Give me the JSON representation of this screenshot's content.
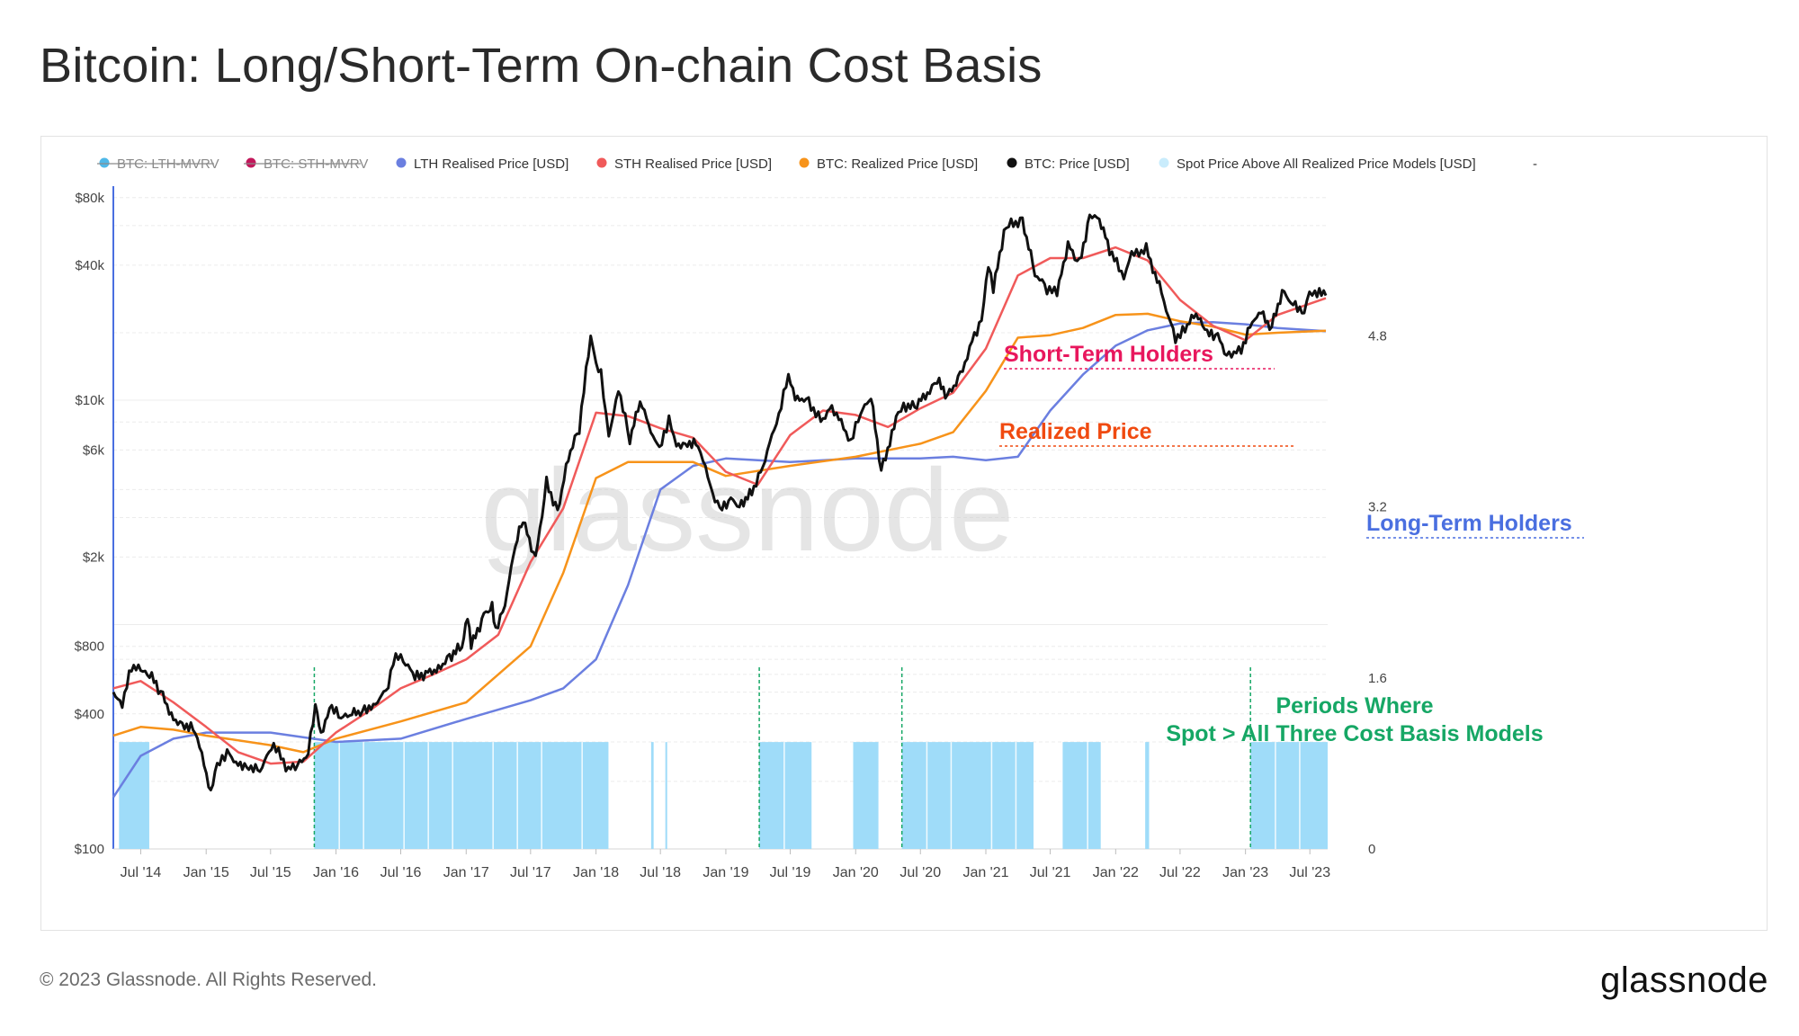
{
  "title": "Bitcoin: Long/Short-Term On-chain Cost Basis",
  "footer": {
    "copyright": "© 2023 Glassnode. All Rights Reserved.",
    "logo": "glassnode"
  },
  "watermark": "glassnode",
  "colors": {
    "lth": "#6b7fe0",
    "sth": "#f05a5a",
    "realized": "#f7931a",
    "price": "#111111",
    "spot": "#9fdcf9",
    "annot_sth": "#e8175d",
    "annot_realized": "#f04a10",
    "annot_lth": "#4a6fe0",
    "annot_periods": "#16a765"
  },
  "legend": [
    {
      "label": "BTC: LTH-MVRV",
      "color": "#4fb8e8",
      "disabled": true
    },
    {
      "label": "BTC: STH-MVRV",
      "color": "#c2185b",
      "disabled": true
    },
    {
      "label": "LTH Realised Price [USD]",
      "color": "#6b7fe0",
      "disabled": false
    },
    {
      "label": "STH Realised Price [USD]",
      "color": "#f05a5a",
      "disabled": false
    },
    {
      "label": "BTC: Realized Price [USD]",
      "color": "#f7931a",
      "disabled": false
    },
    {
      "label": "BTC: Price [USD]",
      "color": "#111111",
      "disabled": false
    },
    {
      "label": "Spot Price Above All Realized Price Models [USD]",
      "color": "#c9ecfc",
      "disabled": false
    },
    {
      "label": "-",
      "color": "none",
      "disabled": false
    }
  ],
  "annotations": {
    "sth": "Short-Term Holders",
    "realized": "Realized Price",
    "lth": "Long-Term Holders",
    "periods_line1": "Periods Where",
    "periods_line2": "Spot > All Three Cost Basis Models"
  },
  "chart_data": {
    "type": "line",
    "x_axis": {
      "type": "time",
      "range": [
        "2014-04-15",
        "2023-08-20"
      ],
      "tick_labels": [
        "Jul '14",
        "Jan '15",
        "Jul '15",
        "Jan '16",
        "Jul '16",
        "Jan '17",
        "Jul '17",
        "Jan '18",
        "Jul '18",
        "Jan '19",
        "Jul '19",
        "Jan '20",
        "Jul '20",
        "Jan '21",
        "Jul '21",
        "Jan '22",
        "Jul '22",
        "Jan '23",
        "Jul '23"
      ],
      "tick_dates": [
        "2014-07-01",
        "2015-01-01",
        "2015-07-01",
        "2016-01-01",
        "2016-07-01",
        "2017-01-01",
        "2017-07-01",
        "2018-01-01",
        "2018-07-01",
        "2019-01-01",
        "2019-07-01",
        "2020-01-01",
        "2020-07-01",
        "2021-01-01",
        "2021-07-01",
        "2022-01-01",
        "2022-07-01",
        "2023-01-01",
        "2023-07-01"
      ]
    },
    "y_axis_left": {
      "scale": "log",
      "range": [
        100,
        90000
      ],
      "tick_values": [
        100,
        400,
        800,
        2000,
        6000,
        10000,
        40000,
        80000
      ],
      "tick_labels": [
        "$100",
        "$400",
        "$800",
        "$2k",
        "$6k",
        "$10k",
        "$40k",
        "$80k"
      ]
    },
    "y_axis_right": {
      "scale": "linear",
      "range": [
        0,
        6.2
      ],
      "tick_values": [
        0,
        1.6,
        3.2,
        4.8
      ],
      "tick_labels": [
        "0",
        "1.6",
        "3.2",
        "4.8"
      ]
    },
    "grid": true,
    "legend_position": "top",
    "series": [
      {
        "name": "BTC: Price [USD]",
        "key": "price",
        "points": [
          [
            "2014-04-15",
            500
          ],
          [
            "2014-05-10",
            450
          ],
          [
            "2014-06-05",
            650
          ],
          [
            "2014-07-01",
            620
          ],
          [
            "2014-08-01",
            580
          ],
          [
            "2014-09-01",
            480
          ],
          [
            "2014-10-01",
            380
          ],
          [
            "2014-11-01",
            360
          ],
          [
            "2014-12-01",
            340
          ],
          [
            "2015-01-14",
            180
          ],
          [
            "2015-02-01",
            230
          ],
          [
            "2015-03-01",
            270
          ],
          [
            "2015-04-01",
            240
          ],
          [
            "2015-05-01",
            235
          ],
          [
            "2015-06-01",
            225
          ],
          [
            "2015-07-10",
            290
          ],
          [
            "2015-08-20",
            225
          ],
          [
            "2015-09-15",
            235
          ],
          [
            "2015-10-15",
            270
          ],
          [
            "2015-11-04",
            450
          ],
          [
            "2015-11-20",
            330
          ],
          [
            "2015-12-20",
            430
          ],
          [
            "2016-01-15",
            380
          ],
          [
            "2016-02-15",
            400
          ],
          [
            "2016-03-15",
            415
          ],
          [
            "2016-04-15",
            440
          ],
          [
            "2016-05-20",
            500
          ],
          [
            "2016-06-17",
            740
          ],
          [
            "2016-07-15",
            670
          ],
          [
            "2016-08-10",
            580
          ],
          [
            "2016-09-15",
            610
          ],
          [
            "2016-10-15",
            640
          ],
          [
            "2016-11-15",
            720
          ],
          [
            "2016-12-20",
            800
          ],
          [
            "2017-01-05",
            1100
          ],
          [
            "2017-01-15",
            800
          ],
          [
            "2017-02-20",
            1100
          ],
          [
            "2017-03-15",
            1200
          ],
          [
            "2017-03-25",
            950
          ],
          [
            "2017-04-20",
            1250
          ],
          [
            "2017-05-25",
            2500
          ],
          [
            "2017-06-10",
            2900
          ],
          [
            "2017-07-15",
            1950
          ],
          [
            "2017-08-15",
            4300
          ],
          [
            "2017-09-15",
            3200
          ],
          [
            "2017-10-15",
            5600
          ],
          [
            "2017-11-15",
            7500
          ],
          [
            "2017-12-17",
            19500
          ],
          [
            "2018-01-01",
            14000
          ],
          [
            "2018-01-15",
            13000
          ],
          [
            "2018-02-06",
            6900
          ],
          [
            "2018-03-05",
            11500
          ],
          [
            "2018-04-06",
            6700
          ],
          [
            "2018-05-05",
            9800
          ],
          [
            "2018-06-28",
            5900
          ],
          [
            "2018-07-25",
            8200
          ],
          [
            "2018-08-15",
            6300
          ],
          [
            "2018-09-15",
            6500
          ],
          [
            "2018-10-15",
            6400
          ],
          [
            "2018-11-25",
            3800
          ],
          [
            "2018-12-15",
            3200
          ],
          [
            "2019-01-15",
            3600
          ],
          [
            "2019-02-08",
            3400
          ],
          [
            "2019-03-15",
            3900
          ],
          [
            "2019-04-15",
            5100
          ],
          [
            "2019-05-30",
            8600
          ],
          [
            "2019-06-26",
            12800
          ],
          [
            "2019-07-15",
            10000
          ],
          [
            "2019-08-15",
            10300
          ],
          [
            "2019-09-25",
            8100
          ],
          [
            "2019-10-26",
            9400
          ],
          [
            "2019-12-18",
            6600
          ],
          [
            "2020-01-15",
            8700
          ],
          [
            "2020-02-13",
            10300
          ],
          [
            "2020-03-13",
            4900
          ],
          [
            "2020-04-30",
            8700
          ],
          [
            "2020-05-15",
            9500
          ],
          [
            "2020-06-15",
            9300
          ],
          [
            "2020-07-27",
            11000
          ],
          [
            "2020-08-17",
            12200
          ],
          [
            "2020-09-15",
            10500
          ],
          [
            "2020-10-21",
            12900
          ],
          [
            "2020-11-30",
            19500
          ],
          [
            "2020-12-20",
            23000
          ],
          [
            "2021-01-08",
            41000
          ],
          [
            "2021-01-22",
            31000
          ],
          [
            "2021-02-21",
            56000
          ],
          [
            "2021-03-13",
            61000
          ],
          [
            "2021-04-14",
            63500
          ],
          [
            "2021-05-19",
            37000
          ],
          [
            "2021-06-22",
            31500
          ],
          [
            "2021-07-20",
            29800
          ],
          [
            "2021-08-20",
            49000
          ],
          [
            "2021-09-21",
            40500
          ],
          [
            "2021-10-20",
            66000
          ],
          [
            "2021-11-10",
            68000
          ],
          [
            "2021-12-15",
            47000
          ],
          [
            "2022-01-24",
            35000
          ],
          [
            "2022-02-15",
            44000
          ],
          [
            "2022-03-28",
            47500
          ],
          [
            "2022-05-10",
            30000
          ],
          [
            "2022-06-18",
            18900
          ],
          [
            "2022-07-15",
            21000
          ],
          [
            "2022-08-15",
            24200
          ],
          [
            "2022-09-15",
            19700
          ],
          [
            "2022-10-15",
            19200
          ],
          [
            "2022-11-09",
            16000
          ],
          [
            "2022-12-20",
            16800
          ],
          [
            "2023-01-20",
            22800
          ],
          [
            "2023-02-20",
            24500
          ],
          [
            "2023-03-10",
            20000
          ],
          [
            "2023-04-14",
            30500
          ],
          [
            "2023-05-15",
            27000
          ],
          [
            "2023-06-15",
            25000
          ],
          [
            "2023-06-30",
            30500
          ],
          [
            "2023-07-15",
            30300
          ],
          [
            "2023-08-15",
            29300
          ]
        ]
      },
      {
        "name": "STH Realised Price [USD]",
        "key": "sth",
        "points": [
          [
            "2014-04-15",
            520
          ],
          [
            "2014-07-01",
            560
          ],
          [
            "2014-10-01",
            450
          ],
          [
            "2015-01-01",
            350
          ],
          [
            "2015-04-01",
            270
          ],
          [
            "2015-07-01",
            240
          ],
          [
            "2015-10-01",
            245
          ],
          [
            "2016-01-01",
            330
          ],
          [
            "2016-04-01",
            410
          ],
          [
            "2016-07-01",
            520
          ],
          [
            "2016-10-01",
            600
          ],
          [
            "2017-01-01",
            700
          ],
          [
            "2017-04-01",
            900
          ],
          [
            "2017-07-01",
            1900
          ],
          [
            "2017-10-01",
            3300
          ],
          [
            "2018-01-01",
            8800
          ],
          [
            "2018-04-01",
            8500
          ],
          [
            "2018-07-01",
            7500
          ],
          [
            "2018-10-01",
            6800
          ],
          [
            "2019-01-01",
            4800
          ],
          [
            "2019-04-01",
            4200
          ],
          [
            "2019-07-01",
            7000
          ],
          [
            "2019-10-01",
            9000
          ],
          [
            "2020-01-01",
            8600
          ],
          [
            "2020-04-01",
            7600
          ],
          [
            "2020-07-01",
            9200
          ],
          [
            "2020-10-01",
            10800
          ],
          [
            "2021-01-01",
            17000
          ],
          [
            "2021-04-01",
            36000
          ],
          [
            "2021-07-01",
            43000
          ],
          [
            "2021-10-01",
            43000
          ],
          [
            "2022-01-01",
            48000
          ],
          [
            "2022-04-01",
            42000
          ],
          [
            "2022-07-01",
            28000
          ],
          [
            "2022-10-01",
            21500
          ],
          [
            "2023-01-01",
            18500
          ],
          [
            "2023-04-01",
            24000
          ],
          [
            "2023-08-15",
            28500
          ]
        ]
      },
      {
        "name": "BTC: Realized Price [USD]",
        "key": "realized",
        "points": [
          [
            "2014-04-15",
            320
          ],
          [
            "2014-07-01",
            350
          ],
          [
            "2014-10-01",
            340
          ],
          [
            "2015-01-01",
            320
          ],
          [
            "2015-07-01",
            290
          ],
          [
            "2015-10-01",
            270
          ],
          [
            "2016-01-01",
            310
          ],
          [
            "2016-07-01",
            370
          ],
          [
            "2017-01-01",
            450
          ],
          [
            "2017-07-01",
            800
          ],
          [
            "2017-10-01",
            1700
          ],
          [
            "2018-01-01",
            4500
          ],
          [
            "2018-04-01",
            5300
          ],
          [
            "2018-07-01",
            5300
          ],
          [
            "2018-10-01",
            5300
          ],
          [
            "2019-01-01",
            4600
          ],
          [
            "2019-07-01",
            5100
          ],
          [
            "2020-01-01",
            5600
          ],
          [
            "2020-07-01",
            6400
          ],
          [
            "2020-10-01",
            7200
          ],
          [
            "2021-01-01",
            11000
          ],
          [
            "2021-04-01",
            19000
          ],
          [
            "2021-07-01",
            19500
          ],
          [
            "2021-10-01",
            21000
          ],
          [
            "2022-01-01",
            24000
          ],
          [
            "2022-04-01",
            24300
          ],
          [
            "2022-07-01",
            22500
          ],
          [
            "2022-10-01",
            21300
          ],
          [
            "2023-01-01",
            19600
          ],
          [
            "2023-04-01",
            20000
          ],
          [
            "2023-08-15",
            20400
          ]
        ]
      },
      {
        "name": "LTH Realised Price [USD]",
        "key": "lth",
        "points": [
          [
            "2014-04-15",
            170
          ],
          [
            "2014-07-01",
            260
          ],
          [
            "2014-10-01",
            310
          ],
          [
            "2015-01-01",
            330
          ],
          [
            "2015-07-01",
            330
          ],
          [
            "2016-01-01",
            300
          ],
          [
            "2016-07-01",
            310
          ],
          [
            "2017-01-01",
            380
          ],
          [
            "2017-07-01",
            460
          ],
          [
            "2017-10-01",
            520
          ],
          [
            "2018-01-01",
            700
          ],
          [
            "2018-04-01",
            1500
          ],
          [
            "2018-07-01",
            4000
          ],
          [
            "2018-10-01",
            5100
          ],
          [
            "2019-01-01",
            5500
          ],
          [
            "2019-07-01",
            5300
          ],
          [
            "2020-01-01",
            5500
          ],
          [
            "2020-07-01",
            5500
          ],
          [
            "2020-10-01",
            5600
          ],
          [
            "2021-01-01",
            5400
          ],
          [
            "2021-04-01",
            5600
          ],
          [
            "2021-07-01",
            9000
          ],
          [
            "2021-10-01",
            13000
          ],
          [
            "2022-01-01",
            17500
          ],
          [
            "2022-04-01",
            20500
          ],
          [
            "2022-07-01",
            22000
          ],
          [
            "2022-10-01",
            22300
          ],
          [
            "2023-01-01",
            21800
          ],
          [
            "2023-04-01",
            21000
          ],
          [
            "2023-08-15",
            20300
          ]
        ]
      }
    ],
    "spot_above_periods": [
      [
        "2014-05-01",
        "2014-07-25"
      ],
      [
        "2015-11-01",
        "2018-02-05"
      ],
      [
        "2018-06-05",
        "2018-06-12"
      ],
      [
        "2018-07-15",
        "2018-07-20"
      ],
      [
        "2019-04-05",
        "2019-08-30"
      ],
      [
        "2019-12-25",
        "2020-03-05"
      ],
      [
        "2020-05-10",
        "2021-05-15"
      ],
      [
        "2021-08-05",
        "2021-11-20"
      ],
      [
        "2022-03-25",
        "2022-04-05"
      ],
      [
        "2023-01-15",
        "2023-08-20"
      ]
    ],
    "spot_above_value": 1.0,
    "vertical_markers": [
      "2015-11-01",
      "2019-04-05",
      "2020-05-10",
      "2023-01-15"
    ]
  }
}
